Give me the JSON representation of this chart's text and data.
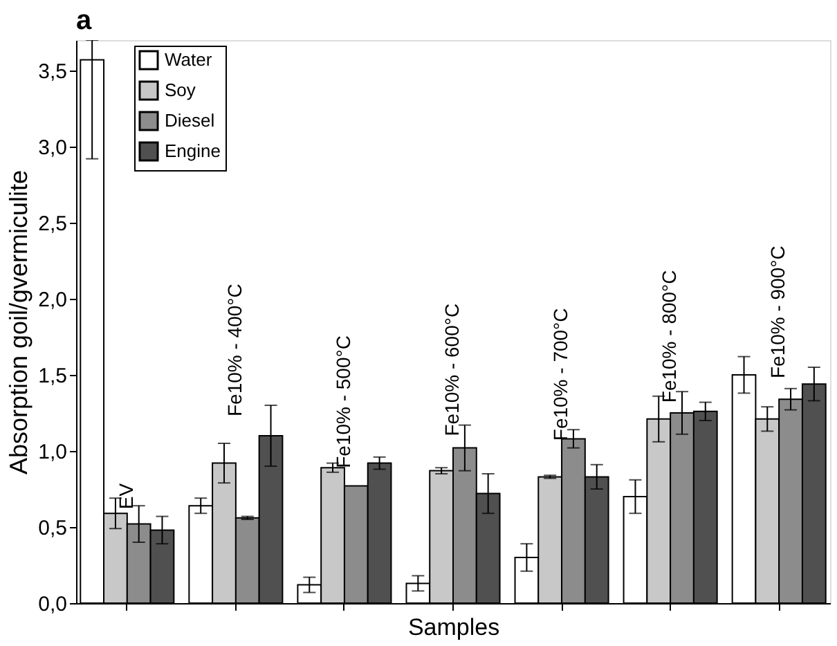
{
  "chart_data": {
    "type": "bar",
    "title": "a",
    "xlabel": "Samples",
    "ylabel": "Absorption goil/gvermiculite",
    "categories": [
      "EV",
      "Fe10% - 400°C",
      "Fe10% - 500°C",
      "Fe10% - 600°C",
      "Fe10% - 700°C",
      "Fe10% - 800°C",
      "Fe10% - 900°C"
    ],
    "series": [
      {
        "name": "Water",
        "color": "#ffffff",
        "values": [
          3.57,
          0.64,
          0.12,
          0.13,
          0.3,
          0.7,
          1.5
        ],
        "errors": [
          [
            2.92,
            3.7
          ],
          0.05,
          0.05,
          0.05,
          0.09,
          0.11,
          0.12
        ]
      },
      {
        "name": "Soy",
        "color": "#c8c8c8",
        "values": [
          0.59,
          0.92,
          0.89,
          0.87,
          0.83,
          1.21,
          1.21
        ],
        "errors": [
          0.1,
          0.13,
          0.03,
          0.02,
          0.01,
          0.15,
          0.08
        ]
      },
      {
        "name": "Diesel",
        "color": "#8c8c8c",
        "values": [
          0.52,
          0.56,
          0.77,
          1.02,
          1.08,
          1.25,
          1.34
        ],
        "errors": [
          0.12,
          0.01,
          null,
          0.15,
          0.06,
          0.14,
          0.07
        ]
      },
      {
        "name": "Engine",
        "color": "#505050",
        "values": [
          0.48,
          1.1,
          0.92,
          0.72,
          0.83,
          1.26,
          1.44
        ],
        "errors": [
          0.09,
          0.2,
          0.04,
          0.13,
          0.08,
          0.06,
          0.11
        ]
      }
    ],
    "ylim": [
      0,
      3.7
    ],
    "yticks": [
      {
        "value": 0,
        "label": "0,0"
      },
      {
        "value": 0.5,
        "label": "0,5"
      },
      {
        "value": 1.0,
        "label": "1,0"
      },
      {
        "value": 1.5,
        "label": "1,5"
      },
      {
        "value": 2.0,
        "label": "2,0"
      },
      {
        "value": 2.5,
        "label": "2,5"
      },
      {
        "value": 3.0,
        "label": "3,0"
      },
      {
        "value": 3.5,
        "label": "3,5"
      }
    ],
    "grid": false,
    "legend": "top left"
  }
}
